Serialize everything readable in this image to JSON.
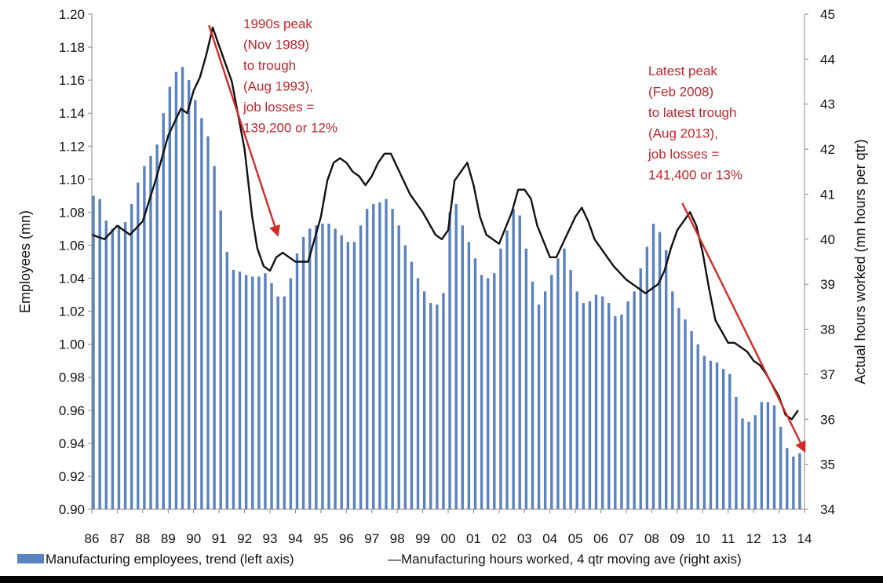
{
  "chart_data": {
    "type": "bar+line",
    "title": "",
    "xlabel": "",
    "ylabel_left": "Employees (mn)",
    "ylabel_right": "Actual hours worked (mn hours per qtr)",
    "ylim_left": [
      0.9,
      1.2
    ],
    "ylim_right": [
      34,
      45
    ],
    "yticks_left": [
      "0.90",
      "0.92",
      "0.94",
      "0.96",
      "0.98",
      "1.00",
      "1.02",
      "1.04",
      "1.06",
      "1.08",
      "1.10",
      "1.12",
      "1.14",
      "1.16",
      "1.18",
      "1.20"
    ],
    "yticks_right": [
      "34",
      "35",
      "36",
      "37",
      "38",
      "39",
      "40",
      "41",
      "42",
      "43",
      "44",
      "45"
    ],
    "x_range": [
      86,
      114
    ],
    "x_tick_labels": [
      "86",
      "87",
      "88",
      "89",
      "90",
      "91",
      "92",
      "93",
      "94",
      "95",
      "96",
      "97",
      "98",
      "99",
      "00",
      "01",
      "02",
      "03",
      "04",
      "05",
      "06",
      "07",
      "08",
      "09",
      "10",
      "11",
      "12",
      "13",
      "14"
    ],
    "series": [
      {
        "name": "Manufacturing employees, trend (left axis)",
        "axis": "left",
        "kind": "bar",
        "color": "#5b82c0",
        "x": [
          86.0,
          86.25,
          86.5,
          86.75,
          87.0,
          87.25,
          87.5,
          87.75,
          88.0,
          88.25,
          88.5,
          88.75,
          89.0,
          89.25,
          89.5,
          89.75,
          90.0,
          90.25,
          90.5,
          90.75,
          91.0,
          91.25,
          91.5,
          91.75,
          92.0,
          92.25,
          92.5,
          92.75,
          93.0,
          93.25,
          93.5,
          93.75,
          94.0,
          94.25,
          94.5,
          94.75,
          95.0,
          95.25,
          95.5,
          95.75,
          96.0,
          96.25,
          96.5,
          96.75,
          97.0,
          97.25,
          97.5,
          97.75,
          98.0,
          98.25,
          98.5,
          98.75,
          99.0,
          99.25,
          99.5,
          99.75,
          100.0,
          100.25,
          100.5,
          100.75,
          101.0,
          101.25,
          101.5,
          101.75,
          102.0,
          102.25,
          102.5,
          102.75,
          103.0,
          103.25,
          103.5,
          103.75,
          104.0,
          104.25,
          104.5,
          104.75,
          105.0,
          105.25,
          105.5,
          105.75,
          106.0,
          106.25,
          106.5,
          106.75,
          107.0,
          107.25,
          107.5,
          107.75,
          108.0,
          108.25,
          108.5,
          108.75,
          109.0,
          109.25,
          109.5,
          109.75,
          110.0,
          110.25,
          110.5,
          110.75,
          111.0,
          111.25,
          111.5,
          111.75,
          112.0,
          112.25,
          112.5,
          112.75,
          113.0,
          113.25,
          113.5,
          113.75
        ],
        "values": [
          1.09,
          1.088,
          1.075,
          1.07,
          1.072,
          1.074,
          1.085,
          1.098,
          1.108,
          1.114,
          1.121,
          1.14,
          1.156,
          1.165,
          1.168,
          1.16,
          1.148,
          1.137,
          1.126,
          1.108,
          1.081,
          1.056,
          1.045,
          1.044,
          1.042,
          1.041,
          1.041,
          1.043,
          1.037,
          1.029,
          1.029,
          1.04,
          1.055,
          1.065,
          1.07,
          1.072,
          1.073,
          1.073,
          1.07,
          1.066,
          1.062,
          1.062,
          1.072,
          1.082,
          1.085,
          1.086,
          1.088,
          1.082,
          1.072,
          1.06,
          1.05,
          1.04,
          1.032,
          1.025,
          1.024,
          1.031,
          1.08,
          1.085,
          1.072,
          1.062,
          1.052,
          1.042,
          1.04,
          1.043,
          1.058,
          1.069,
          1.082,
          1.078,
          1.058,
          1.038,
          1.024,
          1.032,
          1.042,
          1.052,
          1.058,
          1.045,
          1.032,
          1.025,
          1.026,
          1.03,
          1.029,
          1.025,
          1.017,
          1.018,
          1.026,
          1.032,
          1.046,
          1.059,
          1.073,
          1.068,
          1.057,
          1.032,
          1.022,
          1.015,
          1.008,
          1.0,
          0.993,
          0.99,
          0.989,
          0.985,
          0.982,
          0.968,
          0.955,
          0.953,
          0.957,
          0.965,
          0.965,
          0.963,
          0.95,
          0.937,
          0.932,
          0.934
        ]
      },
      {
        "name": "Manufacturing hours worked, 4 qtr moving ave (right axis)",
        "axis": "right",
        "kind": "line",
        "color": "#111111",
        "x": [
          86.0,
          86.5,
          87.0,
          87.5,
          88.0,
          88.5,
          89.0,
          89.5,
          89.75,
          90.0,
          90.25,
          90.5,
          90.75,
          91.0,
          91.5,
          92.0,
          92.3,
          92.5,
          92.75,
          93.0,
          93.25,
          93.5,
          93.75,
          94.0,
          94.5,
          95.0,
          95.25,
          95.5,
          95.75,
          96.0,
          96.25,
          96.5,
          96.75,
          97.0,
          97.25,
          97.5,
          97.75,
          98.0,
          98.5,
          99.0,
          99.5,
          99.75,
          100.0,
          100.25,
          100.5,
          100.75,
          101.0,
          101.25,
          101.5,
          102.0,
          102.5,
          102.75,
          103.0,
          103.25,
          103.5,
          104.0,
          104.25,
          104.5,
          105.0,
          105.25,
          105.5,
          105.75,
          106.0,
          106.5,
          107.0,
          107.5,
          107.75,
          108.0,
          108.25,
          108.5,
          108.75,
          109.0,
          109.5,
          109.75,
          110.0,
          110.25,
          110.5,
          111.0,
          111.25,
          111.5,
          111.75,
          112.0,
          112.25,
          112.5,
          113.0,
          113.25,
          113.5,
          113.75
        ],
        "values": [
          40.1,
          40.0,
          40.3,
          40.1,
          40.4,
          41.3,
          42.3,
          42.9,
          42.8,
          43.3,
          43.6,
          44.1,
          44.7,
          44.3,
          43.5,
          42.0,
          40.5,
          39.8,
          39.4,
          39.3,
          39.6,
          39.7,
          39.6,
          39.5,
          39.5,
          40.5,
          41.3,
          41.7,
          41.8,
          41.7,
          41.5,
          41.4,
          41.2,
          41.4,
          41.7,
          41.9,
          41.9,
          41.6,
          41.0,
          40.6,
          40.1,
          40.0,
          40.2,
          41.3,
          41.5,
          41.7,
          41.2,
          40.5,
          40.1,
          39.9,
          40.6,
          41.1,
          41.1,
          40.9,
          40.3,
          39.6,
          39.6,
          39.9,
          40.5,
          40.7,
          40.4,
          40.0,
          39.8,
          39.4,
          39.1,
          38.9,
          38.8,
          38.9,
          39.0,
          39.3,
          39.8,
          40.2,
          40.6,
          40.3,
          39.7,
          38.9,
          38.2,
          37.7,
          37.7,
          37.6,
          37.5,
          37.3,
          37.2,
          37.0,
          36.5,
          36.1,
          36.0,
          36.2
        ]
      }
    ],
    "annotations": [
      {
        "lines": [
          "1990s peak",
          "(Nov 1989)",
          "to trough",
          "(Aug 1993),",
          "job losses =",
          "139,200 or 12%"
        ],
        "color": "#c0262d",
        "arrow_from": [
          90.6,
          44.75
        ],
        "arrow_to": [
          93.3,
          40.1
        ]
      },
      {
        "lines": [
          "Latest peak",
          "(Feb 2008)",
          "to latest trough",
          "(Aug 2013),",
          "job losses =",
          "141,400 or 13%"
        ],
        "color": "#c0262d",
        "arrow_from": [
          109.2,
          40.8
        ],
        "arrow_to": [
          114.0,
          35.3
        ]
      }
    ],
    "legend": {
      "placement": "bottom",
      "entries": [
        {
          "label": "Manufacturing employees, trend (left axis)",
          "marker": "box",
          "color": "#5b82c0"
        },
        {
          "label": "—Manufacturing hours worked, 4 qtr moving ave (right axis)",
          "marker": "none",
          "color": "#111111"
        }
      ]
    },
    "grid": false
  }
}
